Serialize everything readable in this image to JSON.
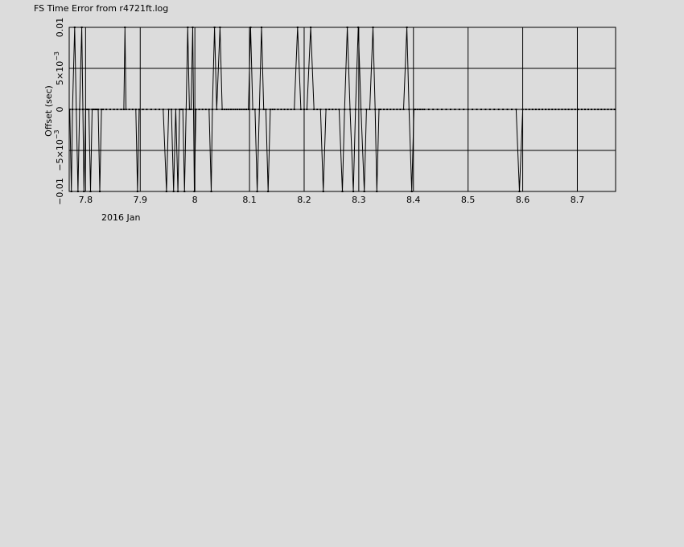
{
  "chart_data": {
    "type": "line",
    "title": "FS Time Error from r4721ft.log",
    "xlabel": "2016 Jan",
    "ylabel": "Offset (sec)",
    "xlim": [
      7.77,
      8.77
    ],
    "ylim": [
      -0.01,
      0.01
    ],
    "x_ticks": [
      {
        "value": 7.8,
        "label": "7.8"
      },
      {
        "value": 7.9,
        "label": "7.9"
      },
      {
        "value": 8.0,
        "label": "8"
      },
      {
        "value": 8.1,
        "label": "8.1"
      },
      {
        "value": 8.2,
        "label": "8.2"
      },
      {
        "value": 8.3,
        "label": "8.3"
      },
      {
        "value": 8.4,
        "label": "8.4"
      },
      {
        "value": 8.5,
        "label": "8.5"
      },
      {
        "value": 8.6,
        "label": "8.6"
      },
      {
        "value": 8.7,
        "label": "8.7"
      }
    ],
    "y_ticks": [
      {
        "value": -0.01,
        "mantissa": "−0.01",
        "exp": ""
      },
      {
        "value": -0.005,
        "mantissa": "−5×10",
        "exp": "−3"
      },
      {
        "value": 0,
        "mantissa": "0",
        "exp": ""
      },
      {
        "value": 0.005,
        "mantissa": "5×10",
        "exp": "−3"
      },
      {
        "value": 0.01,
        "mantissa": "0.01",
        "exp": ""
      }
    ],
    "grid": true,
    "colors": {
      "background": "#dcdcdc",
      "line": "#000000"
    },
    "series": [
      {
        "values": [
          [
            7.771,
            0
          ],
          [
            7.774,
            -0.01
          ],
          [
            7.776,
            0
          ],
          [
            7.78,
            0.01
          ],
          [
            7.783,
            0
          ],
          [
            7.786,
            -0.01
          ],
          [
            7.789,
            0
          ],
          [
            7.793,
            0.01
          ],
          [
            7.795,
            0
          ],
          [
            7.797,
            -0.01
          ],
          [
            7.8,
            0
          ],
          [
            7.803,
            0
          ],
          [
            7.806,
            0
          ],
          [
            7.809,
            -0.01
          ],
          [
            7.812,
            0
          ],
          [
            7.815,
            0
          ],
          [
            7.818,
            0
          ],
          [
            7.82,
            0
          ],
          [
            7.823,
            0
          ],
          [
            7.826,
            -0.01
          ],
          [
            7.829,
            0
          ],
          [
            7.832,
            0
          ],
          [
            7.838,
            0
          ],
          [
            7.845,
            0
          ],
          [
            7.852,
            0
          ],
          [
            7.858,
            0
          ],
          [
            7.865,
            0
          ],
          [
            7.87,
            0
          ],
          [
            7.872,
            0.01
          ],
          [
            7.874,
            0
          ],
          [
            7.88,
            0
          ],
          [
            7.886,
            0
          ],
          [
            7.892,
            0
          ],
          [
            7.895,
            -0.01
          ],
          [
            7.898,
            0
          ],
          [
            7.905,
            0
          ],
          [
            7.912,
            0
          ],
          [
            7.92,
            0
          ],
          [
            7.928,
            0
          ],
          [
            7.935,
            0
          ],
          [
            7.942,
            0
          ],
          [
            7.948,
            -0.01
          ],
          [
            7.952,
            0
          ],
          [
            7.957,
            0
          ],
          [
            7.961,
            -0.01
          ],
          [
            7.965,
            0
          ],
          [
            7.969,
            -0.01
          ],
          [
            7.972,
            0
          ],
          [
            7.975,
            0
          ],
          [
            7.978,
            0
          ],
          [
            7.981,
            -0.01
          ],
          [
            7.984,
            0
          ],
          [
            7.987,
            0.01
          ],
          [
            7.99,
            0
          ],
          [
            7.993,
            0
          ],
          [
            7.996,
            0.01
          ],
          [
            7.999,
            -0.01
          ],
          [
            8.002,
            0
          ],
          [
            8.008,
            0
          ],
          [
            8.014,
            0
          ],
          [
            8.02,
            0
          ],
          [
            8.026,
            0
          ],
          [
            8.03,
            -0.01
          ],
          [
            8.032,
            0
          ],
          [
            8.036,
            0.01
          ],
          [
            8.04,
            0
          ],
          [
            8.046,
            0.01
          ],
          [
            8.05,
            0
          ],
          [
            8.054,
            0
          ],
          [
            8.058,
            0
          ],
          [
            8.062,
            0
          ],
          [
            8.066,
            0
          ],
          [
            8.07,
            0
          ],
          [
            8.074,
            0
          ],
          [
            8.078,
            0
          ],
          [
            8.082,
            0
          ],
          [
            8.086,
            0
          ],
          [
            8.09,
            0
          ],
          [
            8.094,
            0
          ],
          [
            8.098,
            0
          ],
          [
            8.102,
            0.01
          ],
          [
            8.106,
            0
          ],
          [
            8.11,
            0
          ],
          [
            8.114,
            -0.01
          ],
          [
            8.118,
            0
          ],
          [
            8.122,
            0.01
          ],
          [
            8.126,
            0
          ],
          [
            8.13,
            0
          ],
          [
            8.134,
            -0.01
          ],
          [
            8.138,
            0
          ],
          [
            8.142,
            0
          ],
          [
            8.146,
            0
          ],
          [
            8.152,
            0
          ],
          [
            8.158,
            0
          ],
          [
            8.164,
            0
          ],
          [
            8.17,
            0
          ],
          [
            8.176,
            0
          ],
          [
            8.182,
            0
          ],
          [
            8.188,
            0.01
          ],
          [
            8.194,
            0
          ],
          [
            8.2,
            0
          ],
          [
            8.205,
            0
          ],
          [
            8.212,
            0.01
          ],
          [
            8.218,
            0
          ],
          [
            8.224,
            0
          ],
          [
            8.23,
            0
          ],
          [
            8.235,
            -0.01
          ],
          [
            8.24,
            0
          ],
          [
            8.246,
            0
          ],
          [
            8.252,
            0
          ],
          [
            8.258,
            0
          ],
          [
            8.264,
            0
          ],
          [
            8.27,
            -0.01
          ],
          [
            8.274,
            0
          ],
          [
            8.279,
            0.01
          ],
          [
            8.284,
            0
          ],
          [
            8.29,
            -0.01
          ],
          [
            8.294,
            0
          ],
          [
            8.299,
            0.01
          ],
          [
            8.304,
            0
          ],
          [
            8.31,
            -0.01
          ],
          [
            8.314,
            0
          ],
          [
            8.32,
            0
          ],
          [
            8.326,
            0.01
          ],
          [
            8.33,
            0
          ],
          [
            8.333,
            -0.01
          ],
          [
            8.337,
            0
          ],
          [
            8.34,
            0
          ],
          [
            8.346,
            0
          ],
          [
            8.352,
            0
          ],
          [
            8.358,
            0
          ],
          [
            8.364,
            0
          ],
          [
            8.37,
            0
          ],
          [
            8.376,
            0
          ],
          [
            8.382,
            0
          ],
          [
            8.388,
            0.01
          ],
          [
            8.392,
            0
          ],
          [
            8.397,
            -0.01
          ],
          [
            8.401,
            0
          ],
          [
            8.404,
            0
          ],
          [
            8.408,
            0
          ],
          [
            8.412,
            0
          ],
          [
            8.416,
            0
          ],
          [
            8.42,
            0
          ],
          [
            8.428,
            0
          ],
          [
            8.436,
            0
          ],
          [
            8.444,
            0
          ],
          [
            8.452,
            0
          ],
          [
            8.46,
            0
          ],
          [
            8.468,
            0
          ],
          [
            8.476,
            0
          ],
          [
            8.484,
            0
          ],
          [
            8.492,
            0
          ],
          [
            8.5,
            0
          ],
          [
            8.508,
            0
          ],
          [
            8.516,
            0
          ],
          [
            8.524,
            0
          ],
          [
            8.532,
            0
          ],
          [
            8.54,
            0
          ],
          [
            8.548,
            0
          ],
          [
            8.556,
            0
          ],
          [
            8.564,
            0
          ],
          [
            8.572,
            0
          ],
          [
            8.58,
            0
          ],
          [
            8.588,
            0
          ],
          [
            8.594,
            -0.01
          ],
          [
            8.6,
            0
          ],
          [
            8.606,
            0
          ],
          [
            8.612,
            0
          ],
          [
            8.618,
            0
          ],
          [
            8.624,
            0
          ],
          [
            8.63,
            0
          ],
          [
            8.636,
            0
          ],
          [
            8.642,
            0
          ],
          [
            8.648,
            0
          ],
          [
            8.654,
            0
          ],
          [
            8.66,
            0
          ],
          [
            8.666,
            0
          ],
          [
            8.672,
            0
          ],
          [
            8.678,
            0
          ],
          [
            8.684,
            0
          ],
          [
            8.69,
            0
          ],
          [
            8.696,
            0
          ],
          [
            8.702,
            0
          ],
          [
            8.708,
            0
          ],
          [
            8.714,
            0
          ],
          [
            8.72,
            0
          ],
          [
            8.726,
            0
          ],
          [
            8.732,
            0
          ],
          [
            8.738,
            0
          ],
          [
            8.744,
            0
          ],
          [
            8.75,
            0
          ],
          [
            8.756,
            0
          ],
          [
            8.762,
            0
          ],
          [
            8.768,
            0
          ]
        ]
      }
    ]
  }
}
